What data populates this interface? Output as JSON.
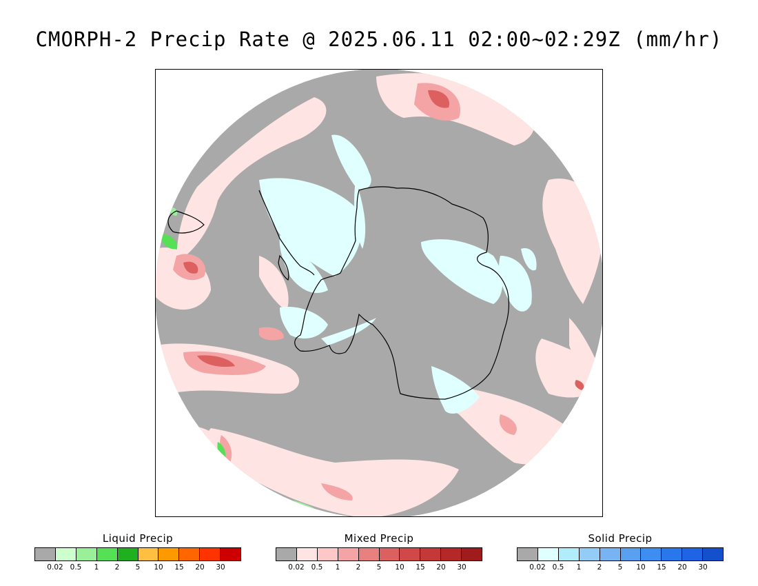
{
  "title": "CMORPH-2 Precip Rate @ 2025.06.11 02:00~02:29Z (mm/hr)",
  "map": {
    "projection": "south-polar-stereographic",
    "background_color": "#a9a9a9",
    "outline_color": "#000000"
  },
  "legends": [
    {
      "id": "liquid",
      "title": "Liquid Precip",
      "colors": [
        "#a9a9a9",
        "#ccffcc",
        "#99f099",
        "#55e055",
        "#1fb01f",
        "#ffbf40",
        "#ff9900",
        "#ff6600",
        "#ff3300",
        "#cc0000"
      ],
      "tick_labels": [
        "0.02",
        "0.5",
        "1",
        "2",
        "5",
        "10",
        "15",
        "20",
        "30"
      ]
    },
    {
      "id": "mixed",
      "title": "Mixed Precip",
      "colors": [
        "#a9a9a9",
        "#ffe4e4",
        "#ffc8c8",
        "#f4a4a4",
        "#e88080",
        "#dc6060",
        "#d04848",
        "#c43838",
        "#b42828",
        "#a01c1c"
      ],
      "tick_labels": [
        "0.02",
        "0.5",
        "1",
        "2",
        "5",
        "10",
        "15",
        "20",
        "30"
      ]
    },
    {
      "id": "solid",
      "title": "Solid Precip",
      "colors": [
        "#a9a9a9",
        "#e0ffff",
        "#b0ecfa",
        "#94ccf8",
        "#78b4f4",
        "#5aa0f0",
        "#3c8ef0",
        "#2878ec",
        "#1e64e4",
        "#1450cc"
      ],
      "tick_labels": [
        "0.02",
        "0.5",
        "1",
        "2",
        "5",
        "10",
        "15",
        "20",
        "30"
      ]
    }
  ]
}
